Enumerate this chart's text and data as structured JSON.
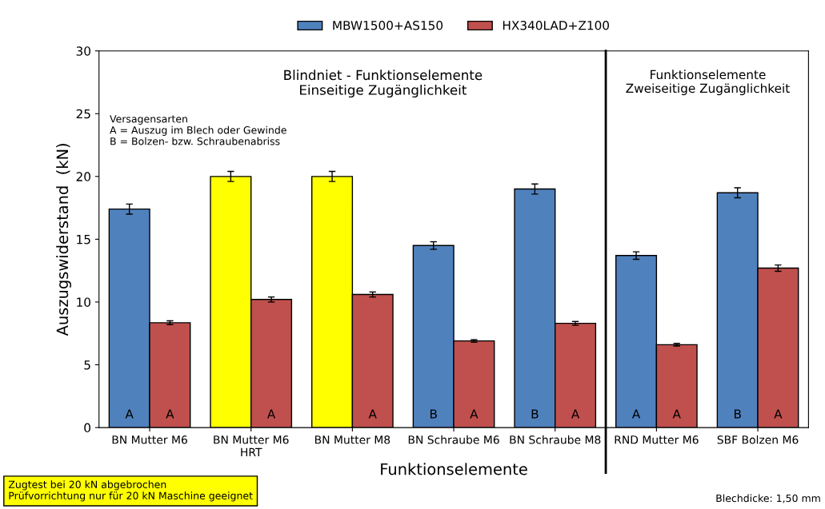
{
  "chart_data": {
    "type": "bar",
    "xlabel": "Funktionselemente",
    "ylabel": "Auszugswiderstand  (kN)",
    "categories": [
      "BN Mutter M6",
      "BN Mutter M6\nHRT",
      "BN Mutter M8",
      "BN Schraube M6",
      "BN Schraube M8",
      "RND Mutter M6",
      "SBF Bolzen M6"
    ],
    "series": [
      {
        "name": "MBW1500+AS150",
        "color": "#4f81bd",
        "colors": [
          "#4f81bd",
          "#ffff00",
          "#ffff00",
          "#4f81bd",
          "#4f81bd",
          "#4f81bd",
          "#4f81bd"
        ],
        "values": [
          17.4,
          20.0,
          20.0,
          14.5,
          19.0,
          13.7,
          18.7
        ],
        "errors": [
          0.4,
          0.4,
          0.4,
          0.3,
          0.4,
          0.3,
          0.4
        ],
        "value_labels": [
          "A",
          null,
          null,
          "B",
          "B",
          "A",
          "B"
        ]
      },
      {
        "name": "HX340LAD+Z100",
        "color": "#c0504d",
        "values": [
          8.35,
          10.2,
          10.6,
          6.9,
          8.3,
          6.6,
          12.7
        ],
        "errors": [
          0.15,
          0.2,
          0.2,
          0.1,
          0.15,
          0.1,
          0.25
        ],
        "value_labels": [
          "A",
          "A",
          "A",
          "A",
          "A",
          "A",
          "A"
        ]
      }
    ],
    "ylim": [
      0,
      30
    ],
    "yticks": [
      0,
      5,
      10,
      15,
      20,
      25,
      30
    ],
    "grid": false,
    "legend": "top",
    "annotations": [
      "Blindniet - Funktionselemente\nEinseitige Zugänglichkeit",
      "Funktionselemente\nZweiseitige Zugänglichkeit",
      "Versagensarten\nA = Auszug im Blech oder Gewinde\nB = Bolzen- bzw. Schraubenabriss",
      "Zugtest bei 20 kN abgebrochen\nPrüfvorrichtung nur für 20 kN Maschine geeignet",
      "Blechdicke: 1,50 mm"
    ]
  }
}
